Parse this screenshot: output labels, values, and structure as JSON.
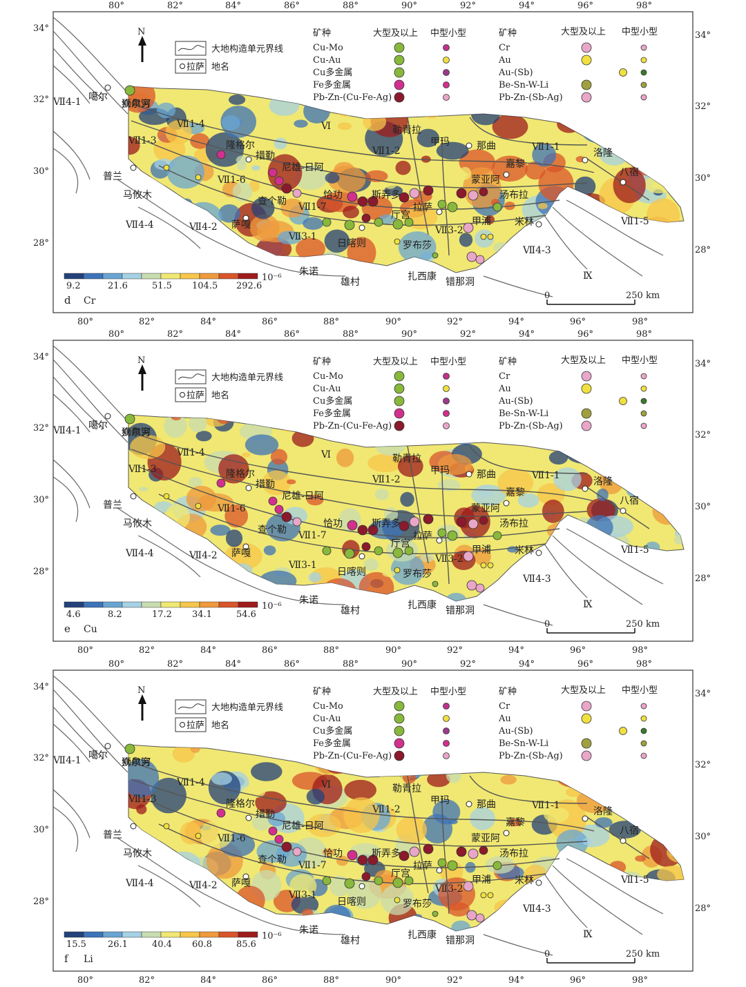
{
  "common": {
    "lon_ticks": [
      "80°",
      "82°",
      "84°",
      "86°",
      "88°",
      "90°",
      "92°",
      "94°",
      "96°",
      "98°"
    ],
    "lat_ticks_left": [
      "34°",
      "32°",
      "30°",
      "28°"
    ],
    "lat_ticks_right": [
      "34°",
      "32°",
      "30°",
      "28°"
    ],
    "north": "N",
    "legend_boundary": "大地构造单元界线",
    "legend_place": "拉萨",
    "legend_place_suffix": "地名",
    "legend_headers": {
      "kind1": "矿种",
      "large1": "大型及以上",
      "mid1": "中型小型",
      "kind2": "矿种",
      "large2": "大型及以上",
      "mid2": "中型小型"
    },
    "legend_rows_left": [
      "Cu-Mo",
      "Cu-Au",
      "Cu多金属",
      "Fe多金属",
      "Pb-Zn-(Cu-Fe-Ag)"
    ],
    "legend_rows_right": [
      "Cr",
      "Au",
      "Au-(Sb)",
      "Be-Sn-W-Li",
      "Pb-Zn-(Sb-Ag)"
    ],
    "scale_bar": {
      "start": "0",
      "end": "250 km"
    },
    "units_labels": [
      "Ⅸ",
      "Ⅵ",
      "Ⅶ4-1",
      "Ⅶ1-4",
      "Ⅶ1-3",
      "Ⅶ1-2",
      "Ⅶ1-1",
      "Ⅶ1-5",
      "Ⅶ1-6",
      "Ⅶ1-7",
      "Ⅶ3-1",
      "Ⅶ4-4",
      "Ⅶ4-2",
      "Ⅶ4-3",
      "Ⅶ3-2"
    ],
    "places": [
      "噶尔",
      "狮泉河",
      "隆格尔",
      "措勤",
      "尼雄-日阿",
      "普兰",
      "马攸木",
      "查个勒",
      "恰功",
      "斯弄多",
      "勒青拉",
      "甲玛",
      "那曲",
      "洛隆",
      "八宿",
      "嘉黎",
      "蒙亚阿",
      "汤布拉",
      "米林",
      "拉萨",
      "甲浦",
      "厅宫",
      "萨嘎",
      "日喀则",
      "罗布莎",
      "朱诺",
      "雄村",
      "扎西康",
      "错那洞",
      "众尔穷"
    ]
  },
  "panels": [
    {
      "letter": "d",
      "element": "Cr",
      "unit": "10⁻⁶",
      "colorbar_values": [
        "9.2",
        "21.6",
        "51.5",
        "104.5",
        "292.6"
      ],
      "colorbar_colors": [
        "#23417a",
        "#3d73b8",
        "#69a5d3",
        "#a5d1e4",
        "#c8dcb0",
        "#f0e872",
        "#f7c64a",
        "#ef9a3c",
        "#d9552b",
        "#9e1b1c"
      ]
    },
    {
      "letter": "e",
      "element": "Cu",
      "unit": "10⁻⁶",
      "colorbar_values": [
        "4.6",
        "8.2",
        "17.2",
        "34.1",
        "54.6"
      ],
      "colorbar_colors": [
        "#23417a",
        "#3d73b8",
        "#69a5d3",
        "#a5d1e4",
        "#c8dcb0",
        "#f0e872",
        "#f7c64a",
        "#ef9a3c",
        "#d9552b",
        "#9e1b1c"
      ]
    },
    {
      "letter": "f",
      "element": "Li",
      "unit": "10⁻⁶",
      "colorbar_values": [
        "15.5",
        "26.1",
        "40.4",
        "60.8",
        "85.6"
      ],
      "colorbar_colors": [
        "#23417a",
        "#3d73b8",
        "#69a5d3",
        "#a5d1e4",
        "#c8dcb0",
        "#f0e872",
        "#f7c64a",
        "#ef9a3c",
        "#d9552b",
        "#9e1b1c"
      ]
    }
  ]
}
